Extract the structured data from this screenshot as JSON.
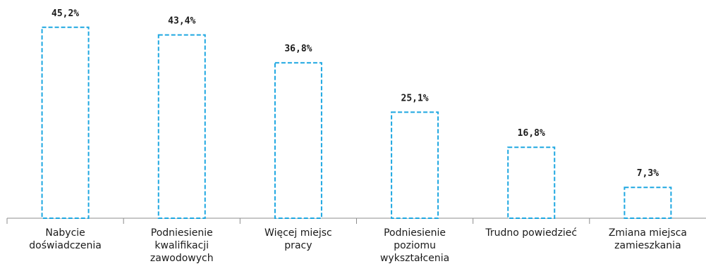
{
  "chart_data": {
    "type": "bar",
    "categories": [
      [
        "Nabycie",
        "doświadczenia"
      ],
      [
        "Podniesienie",
        "kwalifikacji",
        "zawodowych"
      ],
      [
        "Więcej miejsc",
        "pracy"
      ],
      [
        "Podniesienie",
        "poziomu",
        "wykształcenia"
      ],
      [
        "Trudno powiedzieć"
      ],
      [
        "Zmiana miejsca",
        "zamieszkania"
      ]
    ],
    "values": [
      45.2,
      43.4,
      36.8,
      25.1,
      16.8,
      7.3
    ],
    "data_labels": [
      "45,2%",
      "43,4%",
      "36,8%",
      "25,1%",
      "16,8%",
      "7,3%"
    ],
    "ylim": [
      0,
      50
    ],
    "grid": false,
    "legend": "none",
    "colors": {
      "bar_stroke": "#1ea7e1",
      "axis": "#8c8c8c",
      "text": "#1a1a1a"
    }
  }
}
